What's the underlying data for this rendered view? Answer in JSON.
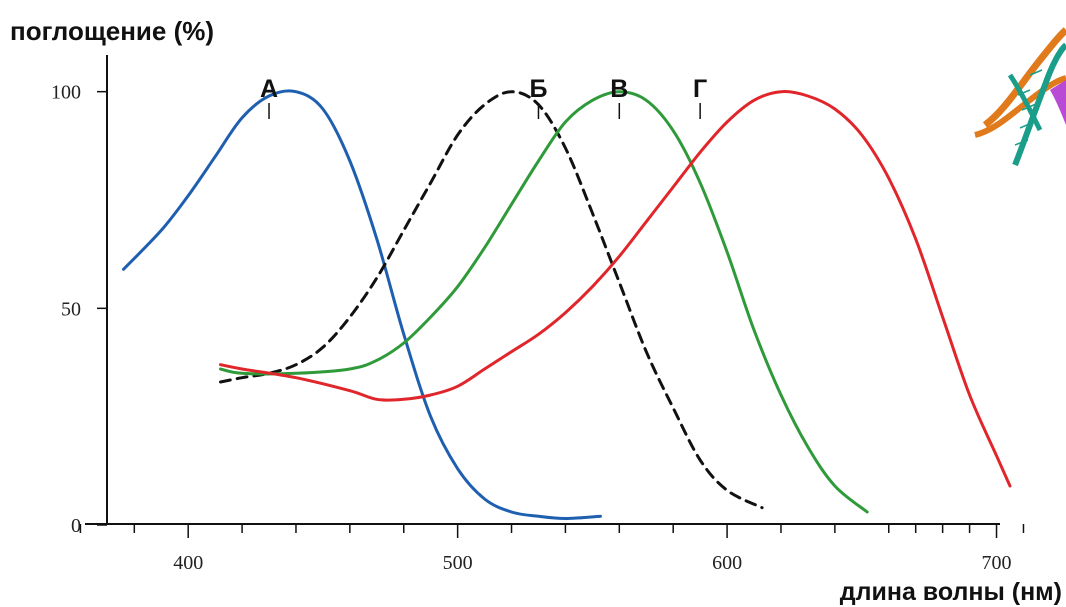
{
  "chart_data": {
    "type": "line",
    "ylabel": "поглощение (%)",
    "xlabel": "длина волны (нм)",
    "xlim": [
      345,
      705
    ],
    "ylim": [
      0,
      120
    ],
    "x_tick_labels": [
      {
        "value": 400,
        "label": "400"
      },
      {
        "value": 500,
        "label": "500"
      },
      {
        "value": 600,
        "label": "600"
      },
      {
        "value": 700,
        "label": "700"
      }
    ],
    "x_minor_ticks": [
      360,
      380,
      420,
      440,
      460,
      480,
      520,
      540,
      560,
      580,
      620,
      640,
      660,
      670,
      680,
      690,
      710
    ],
    "y_tick_labels": [
      {
        "value": 0,
        "label": "0"
      },
      {
        "value": 50,
        "label": "50"
      },
      {
        "value": 100,
        "label": "100"
      }
    ],
    "peak_markers": [
      {
        "label": "А",
        "x": 430
      },
      {
        "label": "Б",
        "x": 530
      },
      {
        "label": "В",
        "x": 560
      },
      {
        "label": "Г",
        "x": 590
      }
    ],
    "series": [
      {
        "name": "А",
        "color": "#1f5fb0",
        "dashed": false,
        "x": [
          376,
          390,
          400,
          410,
          420,
          430,
          440,
          450,
          460,
          470,
          480,
          490,
          500,
          510,
          520,
          530,
          540,
          553
        ],
        "y": [
          59,
          68,
          76,
          85,
          94,
          99,
          100,
          96,
          84,
          66,
          44,
          25,
          13,
          6,
          3,
          2,
          1.5,
          2
        ]
      },
      {
        "name": "Б",
        "color": "#111111",
        "dashed": true,
        "x": [
          412,
          420,
          430,
          440,
          450,
          460,
          470,
          480,
          490,
          500,
          510,
          520,
          530,
          540,
          550,
          560,
          570,
          580,
          590,
          600,
          613
        ],
        "y": [
          33,
          34,
          35,
          37,
          41,
          48,
          57,
          68,
          79,
          90,
          97,
          100,
          97,
          87,
          72,
          56,
          40,
          27,
          15,
          8,
          4
        ]
      },
      {
        "name": "В",
        "color": "#2f9a3a",
        "dashed": false,
        "x": [
          412,
          420,
          440,
          460,
          470,
          480,
          490,
          500,
          510,
          520,
          530,
          540,
          550,
          560,
          570,
          580,
          590,
          600,
          610,
          620,
          630,
          640,
          652
        ],
        "y": [
          36,
          35,
          35,
          36,
          38,
          42,
          48,
          55,
          64,
          74,
          84,
          93,
          98,
          100,
          98,
          91,
          79,
          63,
          45,
          30,
          18,
          9,
          3
        ]
      },
      {
        "name": "Г",
        "color": "#e0262b",
        "dashed": false,
        "x": [
          412,
          420,
          440,
          460,
          470,
          480,
          490,
          500,
          510,
          520,
          530,
          540,
          550,
          560,
          570,
          580,
          590,
          600,
          610,
          620,
          630,
          640,
          650,
          660,
          670,
          680,
          690,
          700,
          705
        ],
        "y": [
          37,
          36,
          34,
          31,
          29,
          29,
          30,
          32,
          36,
          40,
          44,
          49,
          55,
          62,
          70,
          78,
          86,
          93,
          98,
          100,
          99,
          96,
          90,
          80,
          66,
          48,
          30,
          16,
          9
        ]
      }
    ]
  },
  "decoration": {
    "dna_icon": "dna-helix-icon",
    "colors": {
      "strand_a": "#e07a1a",
      "strand_b": "#1a9e8a",
      "accent": "#b84ad6"
    }
  }
}
